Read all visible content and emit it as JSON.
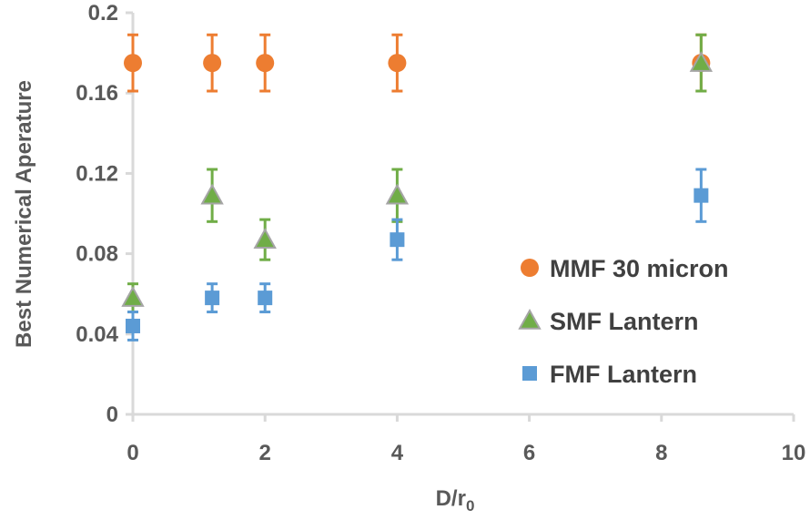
{
  "chart_data": {
    "type": "scatter",
    "title": "",
    "xlabel_main": "D/r",
    "xlabel_sub": "0",
    "ylabel": "Best Numerical Aperature",
    "xlim": [
      0,
      10
    ],
    "ylim": [
      0,
      0.2
    ],
    "x_ticks": [
      "0",
      "2",
      "4",
      "6",
      "8",
      "10"
    ],
    "y_ticks": [
      "0",
      "0.04",
      "0.08",
      "0.12",
      "0.16",
      "0.2"
    ],
    "grid": false,
    "legend_position": "right",
    "series": [
      {
        "name": "MMF 30 micron",
        "marker": "circle",
        "color": "#ED7D31",
        "x": [
          0,
          1.2,
          2,
          4,
          8.6
        ],
        "y": [
          0.175,
          0.175,
          0.175,
          0.175,
          0.175
        ],
        "err": [
          0.014,
          0.014,
          0.014,
          0.014,
          0.014
        ]
      },
      {
        "name": "SMF Lantern",
        "marker": "triangle",
        "color": "#70AD47",
        "x": [
          0,
          1.2,
          2,
          4,
          8.6
        ],
        "y": [
          0.058,
          0.109,
          0.087,
          0.109,
          0.175
        ],
        "err": [
          0.007,
          0.013,
          0.01,
          0.013,
          0.014
        ]
      },
      {
        "name": "FMF Lantern",
        "marker": "square",
        "color": "#5B9BD5",
        "x": [
          0,
          1.2,
          2,
          4,
          8.6
        ],
        "y": [
          0.044,
          0.058,
          0.058,
          0.087,
          0.109
        ],
        "err": [
          0.007,
          0.007,
          0.007,
          0.01,
          0.013
        ]
      }
    ]
  }
}
